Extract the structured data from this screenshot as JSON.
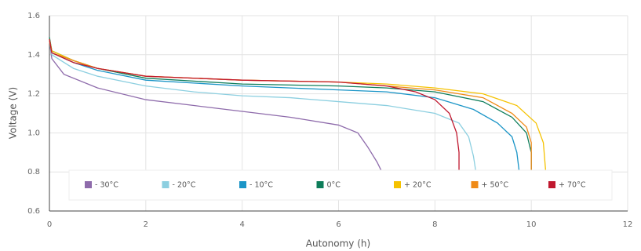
{
  "chart_data": {
    "type": "line",
    "x_label": "Autonomy (h)",
    "y_label": "Voltage (V)",
    "xlim": [
      0,
      12
    ],
    "xticks": [
      0,
      2,
      4,
      6,
      8,
      10,
      12
    ],
    "ylim": [
      0.6,
      1.6
    ],
    "yticks": [
      0.6,
      0.8,
      {
        "value": 1,
        "label": "1.0"
      },
      1.2,
      1.4,
      1.6
    ],
    "grid": true,
    "legend": "bottom",
    "series": [
      {
        "name": "- 30°C",
        "color": "#8e6bab",
        "x": [
          0,
          0.05,
          0.3,
          1,
          2,
          3,
          4,
          5,
          6,
          6.4,
          6.6,
          6.8,
          6.9
        ],
        "values": [
          1.47,
          1.38,
          1.3,
          1.23,
          1.17,
          1.14,
          1.11,
          1.08,
          1.04,
          1.0,
          0.93,
          0.85,
          0.8
        ]
      },
      {
        "name": "- 20°C",
        "color": "#8ccfe0",
        "x": [
          0,
          0.05,
          0.5,
          1,
          2,
          3,
          4,
          5,
          6,
          7,
          8,
          8.5,
          8.7,
          8.8,
          8.85
        ],
        "values": [
          1.47,
          1.4,
          1.33,
          1.29,
          1.24,
          1.21,
          1.19,
          1.18,
          1.16,
          1.14,
          1.1,
          1.05,
          0.98,
          0.88,
          0.8
        ]
      },
      {
        "name": "- 10°C",
        "color": "#1b95c7",
        "x": [
          0,
          0.05,
          0.5,
          1,
          2,
          4,
          6,
          7,
          8,
          8.8,
          9.3,
          9.6,
          9.7,
          9.75
        ],
        "values": [
          1.48,
          1.41,
          1.36,
          1.32,
          1.27,
          1.24,
          1.22,
          1.21,
          1.18,
          1.12,
          1.05,
          0.98,
          0.9,
          0.8
        ]
      },
      {
        "name": "0°C",
        "color": "#0e7d5a",
        "x": [
          0,
          0.05,
          0.5,
          1,
          2,
          4,
          6,
          7,
          8,
          9,
          9.6,
          9.9,
          10,
          10
        ],
        "values": [
          1.49,
          1.42,
          1.37,
          1.33,
          1.28,
          1.25,
          1.24,
          1.23,
          1.21,
          1.16,
          1.08,
          1.0,
          0.9,
          0.8
        ]
      },
      {
        "name": "+ 20°C",
        "color": "#f5c200",
        "x": [
          0,
          0.05,
          0.5,
          1,
          2,
          4,
          6,
          7,
          8,
          9,
          9.7,
          10.1,
          10.25,
          10.3
        ],
        "values": [
          1.48,
          1.42,
          1.37,
          1.33,
          1.29,
          1.27,
          1.26,
          1.25,
          1.23,
          1.2,
          1.14,
          1.05,
          0.95,
          0.8
        ]
      },
      {
        "name": "+ 50°C",
        "color": "#ef8a17",
        "x": [
          0,
          0.05,
          0.5,
          1,
          2,
          4,
          6,
          7,
          8,
          9,
          9.6,
          9.9,
          10,
          10
        ],
        "values": [
          1.47,
          1.41,
          1.37,
          1.33,
          1.29,
          1.27,
          1.26,
          1.24,
          1.22,
          1.18,
          1.1,
          1.03,
          0.95,
          0.8
        ]
      },
      {
        "name": "+ 70°C",
        "color": "#c0182f",
        "x": [
          0,
          0.05,
          0.5,
          1,
          2,
          4,
          6,
          7,
          7.6,
          8,
          8.3,
          8.45,
          8.5,
          8.5
        ],
        "values": [
          1.48,
          1.41,
          1.36,
          1.33,
          1.29,
          1.27,
          1.26,
          1.24,
          1.21,
          1.17,
          1.1,
          1.0,
          0.9,
          0.8
        ]
      }
    ]
  }
}
